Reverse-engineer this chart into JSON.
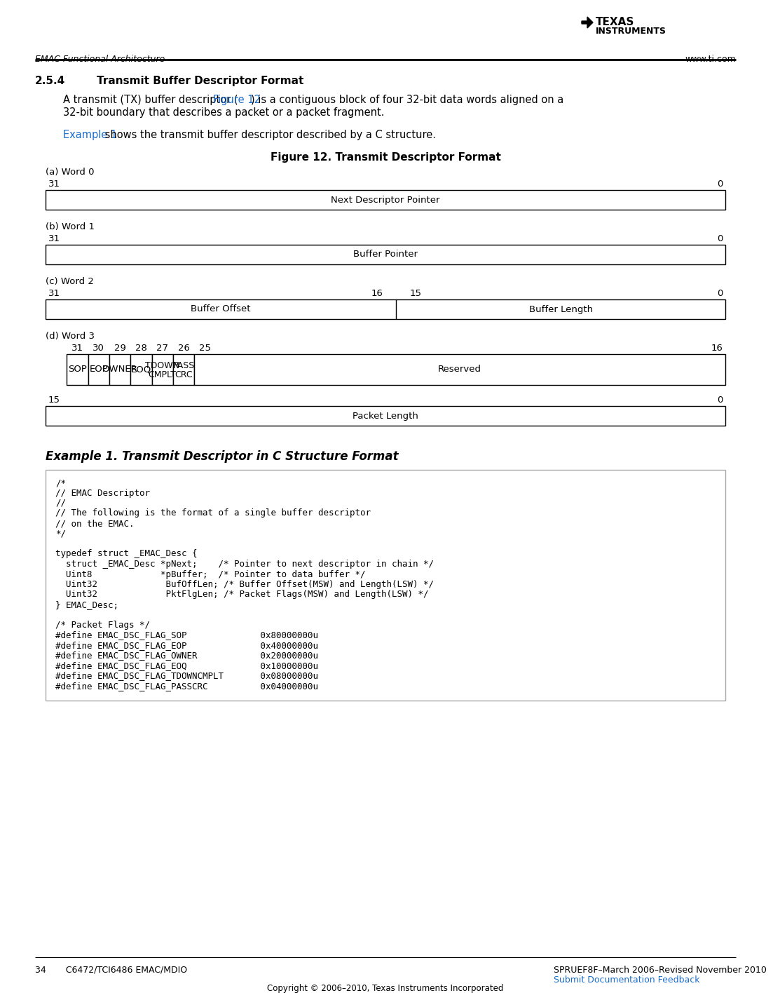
{
  "page_bg": "#ffffff",
  "header_left": "EMAC Functional Architecture",
  "header_right": "www.ti.com",
  "section_num": "2.5.4",
  "section_title": "Transmit Buffer Descriptor Format",
  "figure_title": "Figure 12. Transmit Descriptor Format",
  "example_title": "Example 1. Transmit Descriptor in C Structure Format",
  "link_color": "#1a6dcc",
  "text_color": "#000000",
  "footer_left": "34       C6472/TCI6486 EMAC/MDIO",
  "footer_center": "SPRUEF8F–March 2006–Revised November 2010",
  "footer_link": "Submit Documentation Feedback",
  "footer_copyright": "Copyright © 2006–2010, Texas Instruments Incorporated",
  "code_lines": [
    "/*",
    "// EMAC Descriptor",
    "//",
    "// The following is the format of a single buffer descriptor",
    "// on the EMAC.",
    "*/",
    "",
    "typedef struct _EMAC_Desc {",
    "  struct _EMAC_Desc *pNext;    /* Pointer to next descriptor in chain */",
    "  Uint8             *pBuffer;  /* Pointer to data buffer */",
    "  Uint32             BufOffLen; /* Buffer Offset(MSW) and Length(LSW) */",
    "  Uint32             PktFlgLen; /* Packet Flags(MSW) and Length(LSW) */",
    "} EMAC_Desc;",
    "",
    "/* Packet Flags */",
    "#define EMAC_DSC_FLAG_SOP              0x80000000u",
    "#define EMAC_DSC_FLAG_EOP              0x40000000u",
    "#define EMAC_DSC_FLAG_OWNER            0x20000000u",
    "#define EMAC_DSC_FLAG_EOQ              0x10000000u",
    "#define EMAC_DSC_FLAG_TDOWNCMPLT       0x08000000u",
    "#define EMAC_DSC_FLAG_PASSCRC          0x04000000u"
  ]
}
